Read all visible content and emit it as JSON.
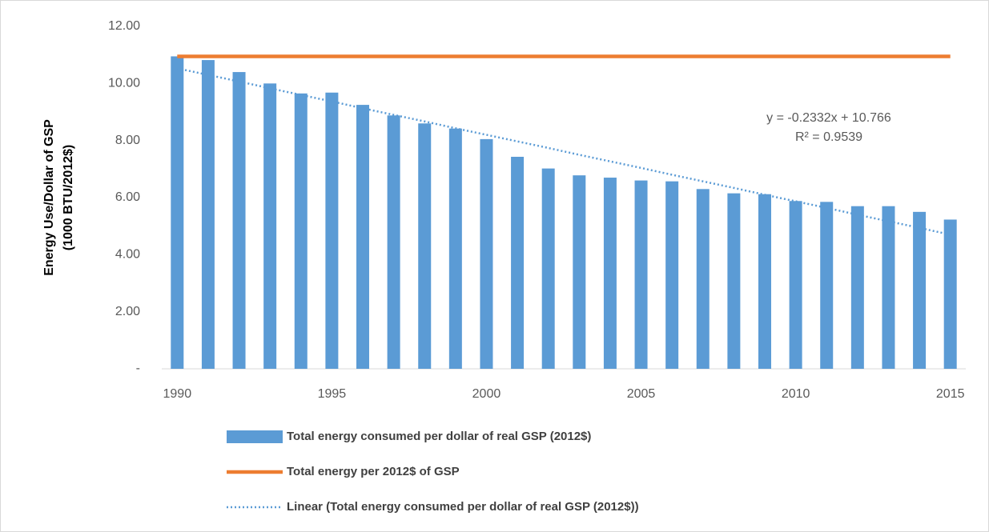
{
  "chart_data": {
    "type": "bar",
    "ylabel": [
      "Energy Use/Dollar of GSP",
      "(1000 BTU/2012$)"
    ],
    "categories": [
      "1990",
      null,
      null,
      null,
      null,
      "1995",
      null,
      null,
      null,
      null,
      "2000",
      null,
      null,
      null,
      null,
      "2005",
      null,
      null,
      null,
      null,
      "2010",
      null,
      null,
      null,
      null,
      "2015"
    ],
    "series": [
      {
        "name": "Total energy consumed per dollar of real GSP (2012$)",
        "type": "bar",
        "color": "#5b9bd5",
        "values": [
          10.95,
          10.82,
          10.4,
          10.0,
          9.65,
          9.68,
          9.25,
          8.88,
          8.6,
          8.42,
          8.05,
          7.43,
          7.02,
          6.78,
          6.7,
          6.6,
          6.57,
          6.3,
          6.15,
          6.12,
          5.88,
          5.85,
          5.7,
          5.7,
          5.5,
          5.23
        ]
      },
      {
        "name": "Total energy per 2012$ of GSP",
        "type": "line",
        "color": "#ed7d31",
        "dash": "solid",
        "values": [
          10.95,
          10.95,
          10.95,
          10.95,
          10.95,
          10.95,
          10.95,
          10.95,
          10.95,
          10.95,
          10.95,
          10.95,
          10.95,
          10.95,
          10.95,
          10.95,
          10.95,
          10.95,
          10.95,
          10.95,
          10.95,
          10.95,
          10.95,
          10.95,
          10.95,
          10.95
        ]
      },
      {
        "name": "Linear (Total energy consumed per dollar of real GSP (2012$))",
        "type": "line",
        "color": "#5b9bd5",
        "dash": "dotted",
        "values": [
          10.53,
          10.3,
          10.07,
          9.83,
          9.6,
          9.37,
          9.13,
          8.9,
          8.67,
          8.43,
          8.2,
          7.97,
          7.74,
          7.5,
          7.27,
          7.04,
          6.8,
          6.57,
          6.34,
          6.1,
          5.87,
          5.64,
          5.4,
          5.17,
          4.94,
          4.7
        ]
      }
    ],
    "annotations": [
      "y = -0.2332x + 10.766",
      "R² = 0.9539"
    ],
    "ylim": [
      0,
      12
    ],
    "yticks": [
      {
        "value": 0,
        "label": "-"
      },
      {
        "value": 2,
        "label": "2.00"
      },
      {
        "value": 4,
        "label": "4.00"
      },
      {
        "value": 6,
        "label": "6.00"
      },
      {
        "value": 8,
        "label": "8.00"
      },
      {
        "value": 10,
        "label": "10.00"
      },
      {
        "value": 12,
        "label": "12.00"
      }
    ],
    "grid": false
  }
}
